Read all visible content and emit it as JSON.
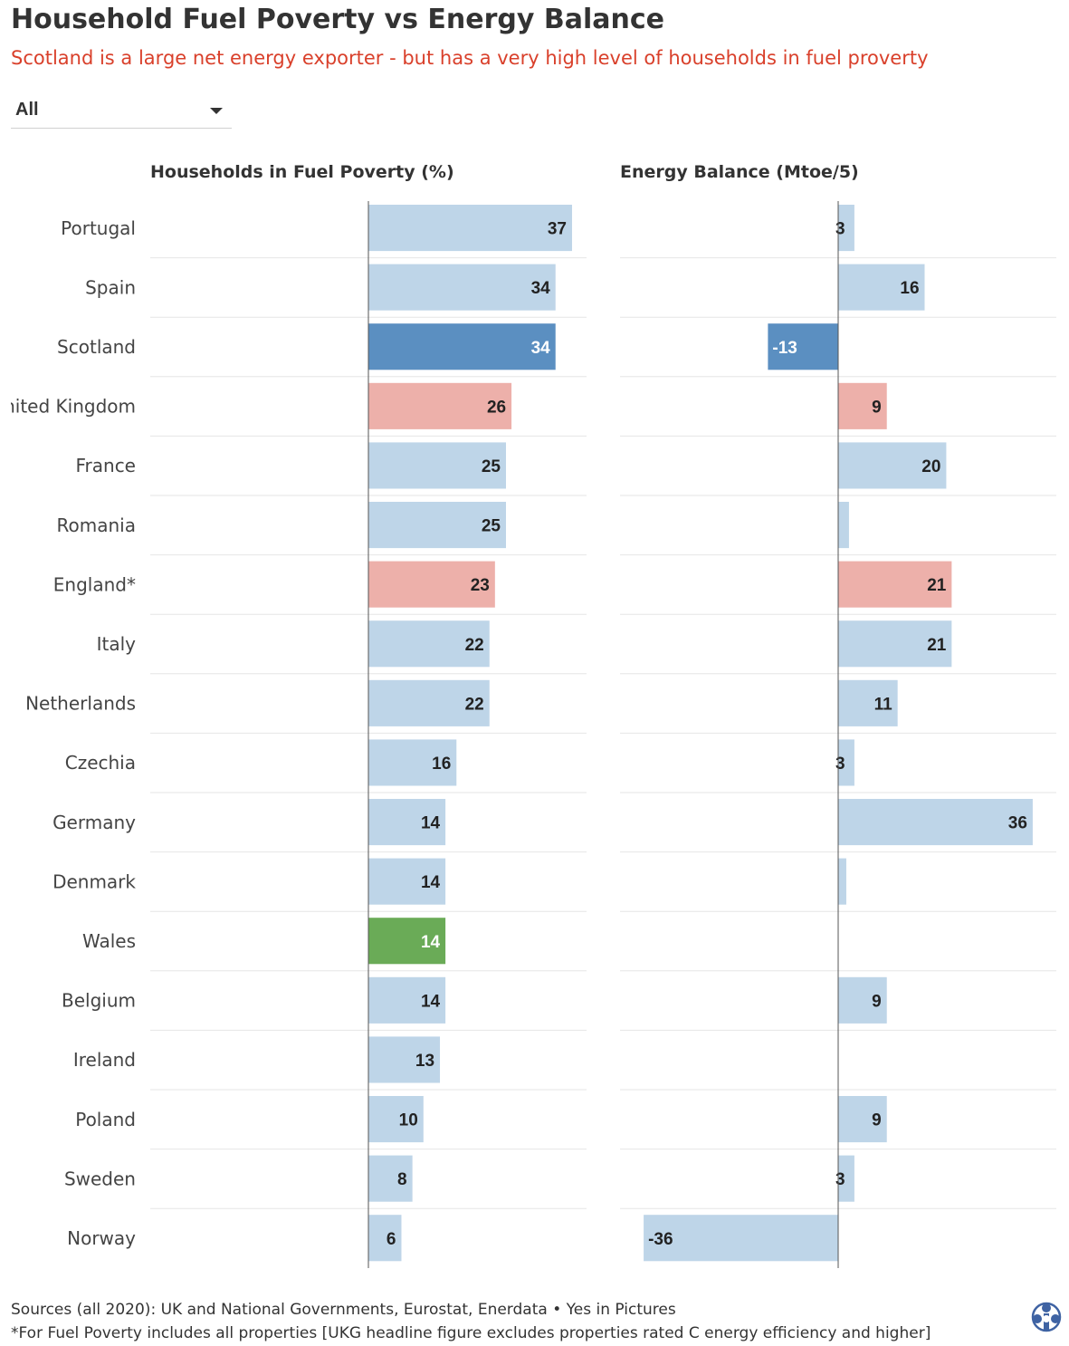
{
  "header": {
    "title": "Household Fuel Poverty vs Energy Balance",
    "subtitle": "Scotland is a large net energy exporter - but has a very high level of households in fuel proverty"
  },
  "filter": {
    "selected": "All"
  },
  "colors": {
    "default": "#bed5e8",
    "scotland": "#5b8fc1",
    "uk_england": "#edb0aa",
    "wales": "#6aab57",
    "label_light": "#ffffff",
    "label_dark": "#222222"
  },
  "chart_data": [
    {
      "type": "bar",
      "orientation": "horizontal",
      "title": "Households in Fuel Poverty (%)",
      "categories": [
        "Portugal",
        "Spain",
        "Scotland",
        "United Kingdom",
        "France",
        "Romania",
        "England*",
        "Italy",
        "Netherlands",
        "Czechia",
        "Germany",
        "Denmark",
        "Wales",
        "Belgium",
        "Ireland",
        "Poland",
        "Sweden",
        "Norway"
      ],
      "values": [
        37,
        34,
        34,
        26,
        25,
        25,
        23,
        22,
        22,
        16,
        14,
        14,
        14,
        14,
        13,
        10,
        8,
        6
      ],
      "data_labels": [
        "37",
        "34",
        "34",
        "26",
        "25",
        "25",
        "23",
        "22",
        "22",
        "16",
        "14",
        "14",
        "14",
        "14",
        "13",
        "10",
        "8",
        "6"
      ],
      "highlight": {
        "Scotland": "scotland",
        "United Kingdom": "uk_england",
        "England*": "uk_england",
        "Wales": "wales"
      }
    },
    {
      "type": "bar",
      "orientation": "horizontal",
      "title": "Energy Balance (Mtoe/5)",
      "categories": [
        "Portugal",
        "Spain",
        "Scotland",
        "United Kingdom",
        "France",
        "Romania",
        "England*",
        "Italy",
        "Netherlands",
        "Czechia",
        "Germany",
        "Denmark",
        "Wales",
        "Belgium",
        "Ireland",
        "Poland",
        "Sweden",
        "Norway"
      ],
      "values": [
        3,
        16,
        -13,
        9,
        20,
        2,
        21,
        21,
        11,
        3,
        36,
        1.5,
        0,
        9,
        0,
        9,
        3,
        -36
      ],
      "data_labels": [
        "3",
        "16",
        "-13",
        "9",
        "20",
        "",
        "21",
        "21",
        "11",
        "3",
        "36",
        "",
        "",
        "9",
        "",
        "9",
        "3",
        "-36"
      ],
      "highlight": {
        "Scotland": "scotland",
        "United Kingdom": "uk_england",
        "England*": "uk_england",
        "Wales": "wales"
      }
    }
  ],
  "footer": {
    "sources": "Sources (all 2020): UK and National Governments, Eurostat, Enerdata • Yes in Pictures",
    "note": "*For Fuel Poverty includes all properties [UKG headline figure excludes properties rated C energy efficiency and higher]"
  }
}
